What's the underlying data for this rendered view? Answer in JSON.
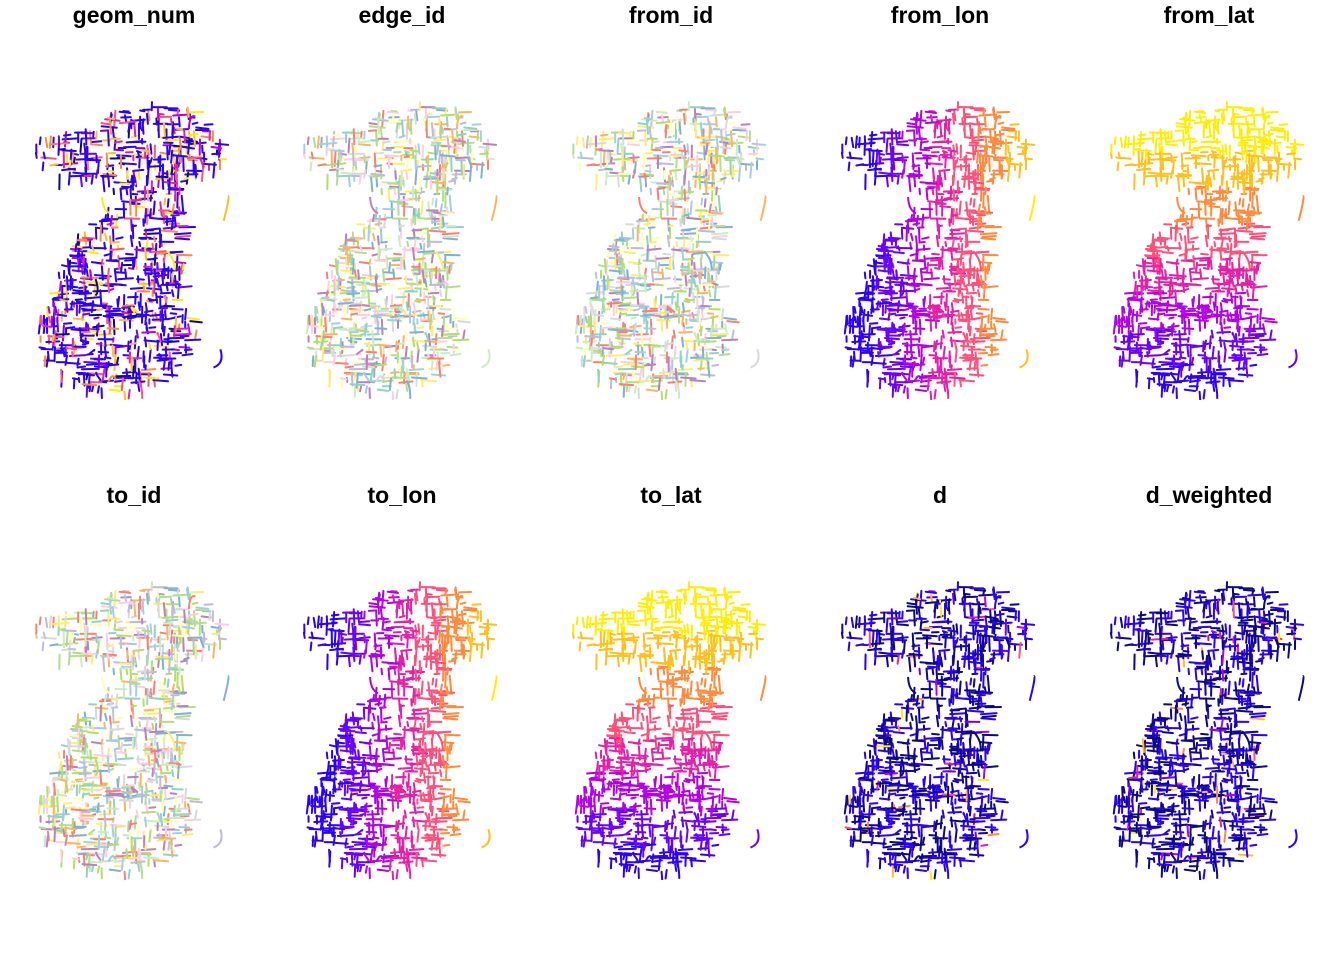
{
  "panels": [
    {
      "title": "geom_num",
      "palette": "random_plasma"
    },
    {
      "title": "edge_id",
      "palette": "pastel_random"
    },
    {
      "title": "from_id",
      "palette": "pastel_random"
    },
    {
      "title": "from_lon",
      "palette": "plasma_by_lon"
    },
    {
      "title": "from_lat",
      "palette": "plasma_by_lat"
    },
    {
      "title": "to_id",
      "palette": "pastel_random"
    },
    {
      "title": "to_lon",
      "palette": "plasma_by_lon"
    },
    {
      "title": "to_lat",
      "palette": "plasma_by_lat"
    },
    {
      "title": "d",
      "palette": "mostly_low"
    },
    {
      "title": "d_weighted",
      "palette": "mostly_low"
    }
  ],
  "colors": {
    "plasma": [
      "#0d0887",
      "#2c00ff",
      "#6a00ff",
      "#b300e8",
      "#e61fa8",
      "#ff4f7a",
      "#ff8a3c",
      "#ffc01e",
      "#ffee00"
    ],
    "pastel": [
      "#8dd3c7",
      "#ffffb3",
      "#bebada",
      "#fb8072",
      "#80b1d3",
      "#fdb462",
      "#b3de69",
      "#fccde5",
      "#d9d9d9",
      "#bc80bd",
      "#ccebc5",
      "#ffed6f",
      "#a6cee3",
      "#b2df8a"
    ],
    "background": "#ffffff",
    "title": "#000000"
  }
}
